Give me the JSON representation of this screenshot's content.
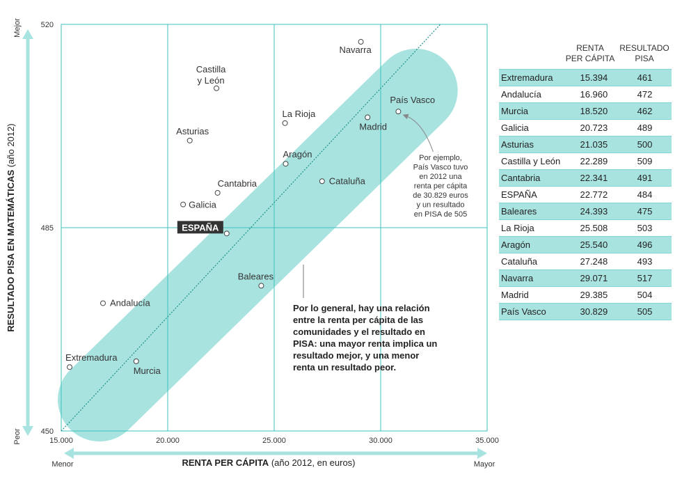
{
  "chart_data": {
    "type": "scatter",
    "xlabel_bold": "RENTA PER CÁPITA",
    "xlabel_rest": "(año 2012, en euros)",
    "ylabel_bold": "RESULTADO PISA EN MATEMÁTICAS",
    "ylabel_rest": "(año 2012)",
    "x_min_label": "Menor",
    "x_max_label": "Mayor",
    "y_min_label": "Peor",
    "y_max_label": "Mejor",
    "xlim": [
      15000,
      35000
    ],
    "ylim": [
      450,
      520
    ],
    "x_ticks": [
      15000,
      20000,
      25000,
      30000,
      35000
    ],
    "x_tick_labels": [
      "15.000",
      "20.000",
      "25.000",
      "30.000",
      "35.000"
    ],
    "y_ticks": [
      450,
      485,
      520
    ],
    "y_tick_labels": [
      "450",
      "485",
      "520"
    ],
    "grid": true,
    "trend_line": {
      "from": [
        15000,
        450
      ],
      "to": [
        32800,
        520
      ]
    },
    "highlight_color": "#a8e3e0",
    "grid_color": "#3cc2bc",
    "points": [
      {
        "name": "Extremadura",
        "x": 15394,
        "y": 461,
        "highlight": false
      },
      {
        "name": "Andalucía",
        "x": 16960,
        "y": 472,
        "highlight": false
      },
      {
        "name": "Murcia",
        "x": 18520,
        "y": 462,
        "highlight": false
      },
      {
        "name": "Galicia",
        "x": 20723,
        "y": 489,
        "highlight": false
      },
      {
        "name": "Asturias",
        "x": 21035,
        "y": 500,
        "highlight": false
      },
      {
        "name": "Castilla y León",
        "x": 22289,
        "y": 509,
        "highlight": false,
        "lines": [
          "Castilla",
          "y León"
        ]
      },
      {
        "name": "Cantabria",
        "x": 22341,
        "y": 491,
        "highlight": false
      },
      {
        "name": "ESPAÑA",
        "x": 22772,
        "y": 484,
        "highlight": true
      },
      {
        "name": "Baleares",
        "x": 24393,
        "y": 475,
        "highlight": false
      },
      {
        "name": "La Rioja",
        "x": 25508,
        "y": 503,
        "highlight": false
      },
      {
        "name": "Aragón",
        "x": 25540,
        "y": 496,
        "highlight": false
      },
      {
        "name": "Cataluña",
        "x": 27248,
        "y": 493,
        "highlight": false
      },
      {
        "name": "Navarra",
        "x": 29071,
        "y": 517,
        "highlight": false
      },
      {
        "name": "Madrid",
        "x": 29385,
        "y": 504,
        "highlight": false
      },
      {
        "name": "País Vasco",
        "x": 30829,
        "y": 505,
        "highlight": false
      }
    ],
    "annotation_example": [
      "Por ejemplo,",
      "País Vasco tuvo",
      "en 2012 una",
      "renta per cápita",
      "de 30.829 euros",
      "y un resultado",
      "en PISA de 505"
    ],
    "annotation_general": [
      "Por lo general, hay una relación",
      "entre la renta per cápita de las",
      "comunidades y el resultado en",
      "PISA: una mayor renta implica un",
      "resultado mejor, y una menor",
      "renta un resultado peor."
    ]
  },
  "table": {
    "headers": {
      "renta": [
        "RENTA",
        "PER CÁPITA"
      ],
      "pisa": [
        "RESULTADO",
        "PISA"
      ]
    },
    "rows": [
      {
        "name": "Extremadura",
        "renta": "15.394",
        "pisa": "461"
      },
      {
        "name": "Andalucía",
        "renta": "16.960",
        "pisa": "472"
      },
      {
        "name": "Murcia",
        "renta": "18.520",
        "pisa": "462"
      },
      {
        "name": "Galicia",
        "renta": "20.723",
        "pisa": "489"
      },
      {
        "name": "Asturias",
        "renta": "21.035",
        "pisa": "500"
      },
      {
        "name": "Castilla y León",
        "renta": "22.289",
        "pisa": "509"
      },
      {
        "name": "Cantabria",
        "renta": "22.341",
        "pisa": "491"
      },
      {
        "name": "ESPAÑA",
        "renta": "22.772",
        "pisa": "484"
      },
      {
        "name": "Baleares",
        "renta": "24.393",
        "pisa": "475"
      },
      {
        "name": "La Rioja",
        "renta": "25.508",
        "pisa": "503"
      },
      {
        "name": "Aragón",
        "renta": "25.540",
        "pisa": "496"
      },
      {
        "name": "Cataluña",
        "renta": "27.248",
        "pisa": "493"
      },
      {
        "name": "Navarra",
        "renta": "29.071",
        "pisa": "517"
      },
      {
        "name": "Madrid",
        "renta": "29.385",
        "pisa": "504"
      },
      {
        "name": "País Vasco",
        "renta": "30.829",
        "pisa": "505"
      }
    ]
  }
}
